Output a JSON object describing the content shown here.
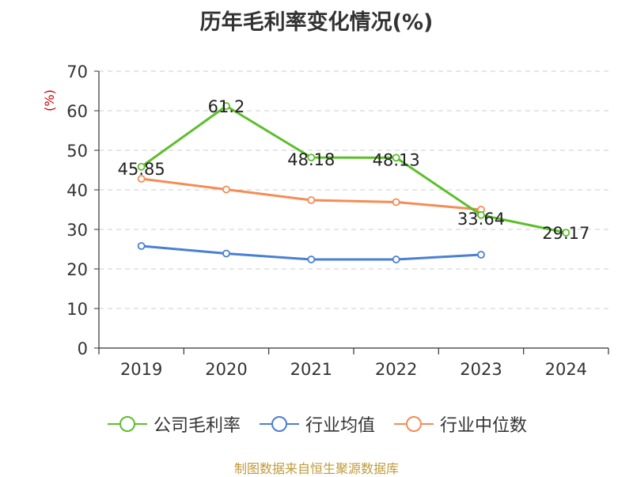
{
  "chart_data": {
    "type": "line",
    "title": "历年毛利率变化情况(%)",
    "ylabel": "(%)",
    "xlabel": "",
    "categories": [
      "2019",
      "2020",
      "2021",
      "2022",
      "2023",
      "2024"
    ],
    "ylim": [
      0,
      70
    ],
    "yticks": [
      "0",
      "10",
      "20",
      "30",
      "40",
      "50",
      "60",
      "70"
    ],
    "grid": "horizontal-dashed",
    "legend": "bottom",
    "series": [
      {
        "name": "公司毛利率",
        "color": "#5cbf2a",
        "values": [
          45.85,
          61.2,
          48.18,
          48.13,
          33.64,
          29.17
        ],
        "labels": [
          "45.85",
          "61.2",
          "48.18",
          "48.13",
          "33.64",
          "29.17"
        ]
      },
      {
        "name": "行业均值",
        "color": "#4a7fd4",
        "values": [
          25.8,
          23.9,
          22.4,
          22.4,
          23.6,
          null
        ]
      },
      {
        "name": "行业中位数",
        "color": "#f58c56",
        "values": [
          42.8,
          40.1,
          37.4,
          36.9,
          35.0,
          null
        ]
      }
    ]
  },
  "source_note": "制图数据来自恒生聚源数据库"
}
